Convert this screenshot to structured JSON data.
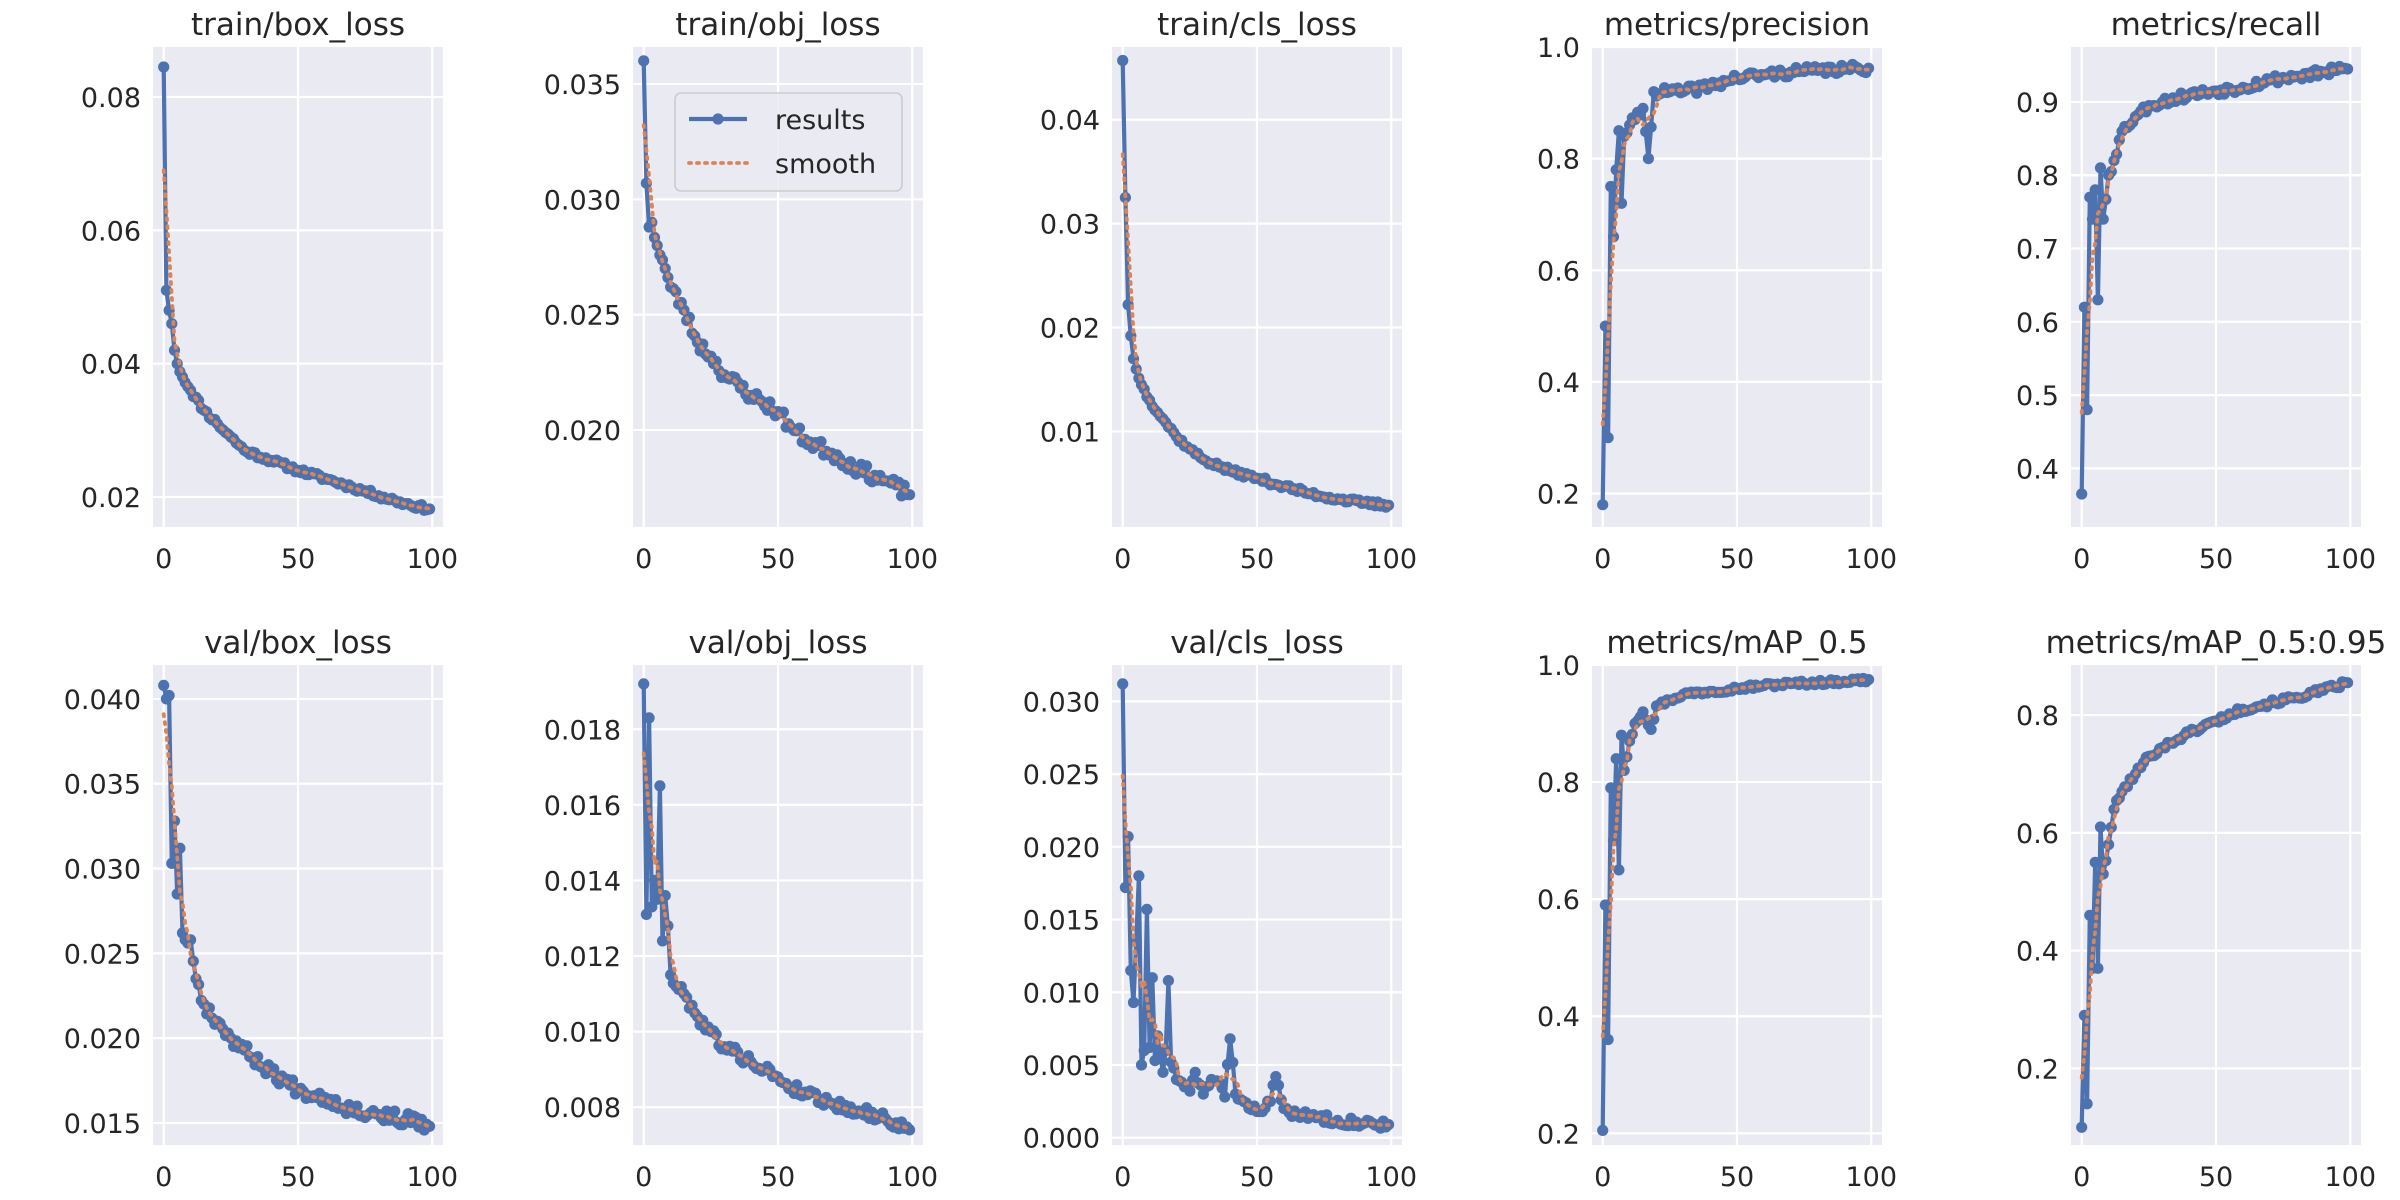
{
  "figure": {
    "colors": {
      "background": "#ffffff",
      "panel": "#EAEAF2",
      "grid": "#ffffff",
      "results": "#4C72B0",
      "smooth": "#DD8452",
      "text": "#262626"
    },
    "legend": {
      "location": "top-right",
      "panel": "train/obj_loss",
      "results_label": "results",
      "smooth_label": "smooth"
    }
  },
  "chart_data": [
    {
      "type": "line",
      "title": "train/box_loss",
      "xlim": [
        -4,
        104
      ],
      "ylim": [
        0.0155,
        0.0875
      ],
      "xticks": [
        0,
        50,
        100
      ],
      "xtick_labels": [
        "0",
        "50",
        "100"
      ],
      "yticks": [
        0.02,
        0.04,
        0.06,
        0.08
      ],
      "ytick_labels": [
        "0.02",
        "0.04",
        "0.06",
        "0.08"
      ],
      "anchors": [
        [
          0,
          0.0845
        ],
        [
          1,
          0.051
        ],
        [
          2,
          0.048
        ],
        [
          3,
          0.046
        ],
        [
          4,
          0.042
        ],
        [
          5,
          0.04
        ],
        [
          7,
          0.038
        ],
        [
          10,
          0.036
        ],
        [
          15,
          0.033
        ],
        [
          20,
          0.031
        ],
        [
          25,
          0.029
        ],
        [
          30,
          0.027
        ],
        [
          40,
          0.0255
        ],
        [
          50,
          0.024
        ],
        [
          60,
          0.0228
        ],
        [
          70,
          0.0215
        ],
        [
          80,
          0.0202
        ],
        [
          90,
          0.019
        ],
        [
          99,
          0.0182
        ]
      ],
      "noise": 0.0004,
      "seed": 11
    },
    {
      "type": "line",
      "title": "train/obj_loss",
      "xlim": [
        -4,
        104
      ],
      "ylim": [
        0.0158,
        0.0366
      ],
      "xticks": [
        0,
        50,
        100
      ],
      "xtick_labels": [
        "0",
        "50",
        "100"
      ],
      "yticks": [
        0.02,
        0.025,
        0.03,
        0.035
      ],
      "ytick_labels": [
        "0.020",
        "0.025",
        "0.030",
        "0.035"
      ],
      "anchors": [
        [
          0,
          0.036
        ],
        [
          1,
          0.0307
        ],
        [
          2,
          0.0288
        ],
        [
          3,
          0.029
        ],
        [
          5,
          0.028
        ],
        [
          8,
          0.027
        ],
        [
          10,
          0.0262
        ],
        [
          15,
          0.0252
        ],
        [
          20,
          0.0238
        ],
        [
          25,
          0.0232
        ],
        [
          30,
          0.0224
        ],
        [
          40,
          0.0215
        ],
        [
          50,
          0.0208
        ],
        [
          55,
          0.0201
        ],
        [
          60,
          0.0196
        ],
        [
          70,
          0.019
        ],
        [
          80,
          0.0183
        ],
        [
          90,
          0.0178
        ],
        [
          99,
          0.0172
        ]
      ],
      "noise": 0.0003,
      "seed": 23
    },
    {
      "type": "line",
      "title": "train/cls_loss",
      "xlim": [
        -4,
        104
      ],
      "ylim": [
        0.0008,
        0.047
      ],
      "xticks": [
        0,
        50,
        100
      ],
      "xtick_labels": [
        "0",
        "50",
        "100"
      ],
      "yticks": [
        0.01,
        0.02,
        0.03,
        0.04
      ],
      "ytick_labels": [
        "0.01",
        "0.02",
        "0.03",
        "0.04"
      ],
      "anchors": [
        [
          0,
          0.0457
        ],
        [
          1,
          0.0325
        ],
        [
          2,
          0.0222
        ],
        [
          3,
          0.0192
        ],
        [
          4,
          0.017
        ],
        [
          5,
          0.016
        ],
        [
          7,
          0.0145
        ],
        [
          10,
          0.013
        ],
        [
          15,
          0.0112
        ],
        [
          20,
          0.0095
        ],
        [
          25,
          0.0083
        ],
        [
          30,
          0.0073
        ],
        [
          40,
          0.0062
        ],
        [
          50,
          0.0055
        ],
        [
          60,
          0.0047
        ],
        [
          70,
          0.004
        ],
        [
          80,
          0.0035
        ],
        [
          90,
          0.0031
        ],
        [
          99,
          0.0029
        ]
      ],
      "noise": 0.00025,
      "seed": 37
    },
    {
      "type": "line",
      "title": "metrics/precision",
      "xlim": [
        -4,
        104
      ],
      "ylim": [
        0.14,
        1.0
      ],
      "xticks": [
        0,
        50,
        100
      ],
      "xtick_labels": [
        "0",
        "50",
        "100"
      ],
      "yticks": [
        0.2,
        0.4,
        0.6,
        0.8,
        1.0
      ],
      "ytick_labels": [
        "0.2",
        "0.4",
        "0.6",
        "0.8",
        "1.0"
      ],
      "anchors": [
        [
          0,
          0.18
        ],
        [
          1,
          0.5
        ],
        [
          2,
          0.3
        ],
        [
          3,
          0.75
        ],
        [
          4,
          0.66
        ],
        [
          5,
          0.78
        ],
        [
          6,
          0.85
        ],
        [
          7,
          0.72
        ],
        [
          8,
          0.84
        ],
        [
          10,
          0.86
        ],
        [
          12,
          0.87
        ],
        [
          15,
          0.89
        ],
        [
          17,
          0.8
        ],
        [
          19,
          0.92
        ],
        [
          25,
          0.92
        ],
        [
          30,
          0.92
        ],
        [
          40,
          0.93
        ],
        [
          50,
          0.945
        ],
        [
          60,
          0.95
        ],
        [
          70,
          0.955
        ],
        [
          80,
          0.958
        ],
        [
          90,
          0.96
        ],
        [
          99,
          0.962
        ]
      ],
      "noise": 0.008,
      "seed": 41
    },
    {
      "type": "line",
      "title": "metrics/recall",
      "xlim": [
        -4,
        104
      ],
      "ylim": [
        0.32,
        0.975
      ],
      "xticks": [
        0,
        50,
        100
      ],
      "xtick_labels": [
        "0",
        "50",
        "100"
      ],
      "yticks": [
        0.4,
        0.5,
        0.6,
        0.7,
        0.8,
        0.9
      ],
      "ytick_labels": [
        "0.4",
        "0.5",
        "0.6",
        "0.7",
        "0.8",
        "0.9"
      ],
      "anchors": [
        [
          0,
          0.365
        ],
        [
          1,
          0.62
        ],
        [
          2,
          0.48
        ],
        [
          3,
          0.77
        ],
        [
          4,
          0.74
        ],
        [
          5,
          0.78
        ],
        [
          6,
          0.63
        ],
        [
          7,
          0.81
        ],
        [
          8,
          0.74
        ],
        [
          10,
          0.8
        ],
        [
          12,
          0.82
        ],
        [
          15,
          0.86
        ],
        [
          20,
          0.88
        ],
        [
          25,
          0.895
        ],
        [
          30,
          0.9
        ],
        [
          40,
          0.91
        ],
        [
          50,
          0.915
        ],
        [
          60,
          0.92
        ],
        [
          70,
          0.93
        ],
        [
          80,
          0.935
        ],
        [
          90,
          0.94
        ],
        [
          99,
          0.945
        ]
      ],
      "noise": 0.006,
      "seed": 53
    },
    {
      "type": "line",
      "title": "val/box_loss",
      "xlim": [
        -4,
        104
      ],
      "ylim": [
        0.0137,
        0.042
      ],
      "xticks": [
        0,
        50,
        100
      ],
      "xtick_labels": [
        "0",
        "50",
        "100"
      ],
      "yticks": [
        0.015,
        0.02,
        0.025,
        0.03,
        0.035,
        0.04
      ],
      "ytick_labels": [
        "0.015",
        "0.020",
        "0.025",
        "0.030",
        "0.035",
        "0.040"
      ],
      "anchors": [
        [
          0,
          0.0408
        ],
        [
          1,
          0.04
        ],
        [
          2,
          0.0402
        ],
        [
          3,
          0.0303
        ],
        [
          4,
          0.0328
        ],
        [
          5,
          0.0285
        ],
        [
          6,
          0.0312
        ],
        [
          7,
          0.0262
        ],
        [
          8,
          0.0258
        ],
        [
          10,
          0.0258
        ],
        [
          12,
          0.0235
        ],
        [
          15,
          0.022
        ],
        [
          20,
          0.021
        ],
        [
          25,
          0.02
        ],
        [
          30,
          0.0193
        ],
        [
          40,
          0.018
        ],
        [
          50,
          0.017
        ],
        [
          60,
          0.0165
        ],
        [
          70,
          0.0158
        ],
        [
          80,
          0.0155
        ],
        [
          90,
          0.0152
        ],
        [
          99,
          0.0148
        ]
      ],
      "noise": 0.0004,
      "seed": 67
    },
    {
      "type": "line",
      "title": "val/obj_loss",
      "xlim": [
        -4,
        104
      ],
      "ylim": [
        0.007,
        0.0197
      ],
      "xticks": [
        0,
        50,
        100
      ],
      "xtick_labels": [
        "0",
        "50",
        "100"
      ],
      "yticks": [
        0.008,
        0.01,
        0.012,
        0.014,
        0.016,
        0.018
      ],
      "ytick_labels": [
        "0.008",
        "0.010",
        "0.012",
        "0.014",
        "0.016",
        "0.018"
      ],
      "anchors": [
        [
          0,
          0.0192
        ],
        [
          1,
          0.0131
        ],
        [
          2,
          0.0183
        ],
        [
          3,
          0.0133
        ],
        [
          4,
          0.014
        ],
        [
          5,
          0.0135
        ],
        [
          6,
          0.0165
        ],
        [
          7,
          0.0124
        ],
        [
          8,
          0.0136
        ],
        [
          9,
          0.0128
        ],
        [
          10,
          0.0115
        ],
        [
          12,
          0.0112
        ],
        [
          15,
          0.011
        ],
        [
          20,
          0.0104
        ],
        [
          25,
          0.01
        ],
        [
          30,
          0.0096
        ],
        [
          40,
          0.0092
        ],
        [
          50,
          0.0088
        ],
        [
          55,
          0.0085
        ],
        [
          60,
          0.0084
        ],
        [
          70,
          0.0081
        ],
        [
          80,
          0.0079
        ],
        [
          90,
          0.0077
        ],
        [
          99,
          0.0074
        ]
      ],
      "noise": 0.00015,
      "seed": 79
    },
    {
      "type": "line",
      "title": "val/cls_loss",
      "xlim": [
        -4,
        104
      ],
      "ylim": [
        -0.0005,
        0.0325
      ],
      "xticks": [
        0,
        50,
        100
      ],
      "xtick_labels": [
        "0",
        "50",
        "100"
      ],
      "yticks": [
        0.0,
        0.005,
        0.01,
        0.015,
        0.02,
        0.025,
        0.03
      ],
      "ytick_labels": [
        "0.000",
        "0.005",
        "0.010",
        "0.015",
        "0.020",
        "0.025",
        "0.030"
      ],
      "anchors": [
        [
          0,
          0.0312
        ],
        [
          1,
          0.0172
        ],
        [
          2,
          0.0207
        ],
        [
          3,
          0.0115
        ],
        [
          4,
          0.0093
        ],
        [
          5,
          0.0135
        ],
        [
          6,
          0.018
        ],
        [
          7,
          0.005
        ],
        [
          8,
          0.006
        ],
        [
          9,
          0.0157
        ],
        [
          10,
          0.0062
        ],
        [
          11,
          0.011
        ],
        [
          12,
          0.0053
        ],
        [
          13,
          0.007
        ],
        [
          15,
          0.0045
        ],
        [
          16,
          0.006
        ],
        [
          17,
          0.0108
        ],
        [
          18,
          0.0052
        ],
        [
          20,
          0.004
        ],
        [
          23,
          0.0035
        ],
        [
          25,
          0.0032
        ],
        [
          27,
          0.0045
        ],
        [
          30,
          0.003
        ],
        [
          33,
          0.004
        ],
        [
          36,
          0.0038
        ],
        [
          38,
          0.0028
        ],
        [
          40,
          0.0068
        ],
        [
          42,
          0.003
        ],
        [
          45,
          0.0025
        ],
        [
          50,
          0.0018
        ],
        [
          55,
          0.0025
        ],
        [
          57,
          0.0042
        ],
        [
          60,
          0.002
        ],
        [
          65,
          0.0015
        ],
        [
          70,
          0.0015
        ],
        [
          80,
          0.0012
        ],
        [
          90,
          0.001
        ],
        [
          99,
          0.0009
        ]
      ],
      "noise": 0.0003,
      "seed": 83
    },
    {
      "type": "line",
      "title": "metrics/mAP_0.5",
      "xlim": [
        -4,
        104
      ],
      "ylim": [
        0.18,
        1.0
      ],
      "xticks": [
        0,
        50,
        100
      ],
      "xtick_labels": [
        "0",
        "50",
        "100"
      ],
      "yticks": [
        0.2,
        0.4,
        0.6,
        0.8,
        1.0
      ],
      "ytick_labels": [
        "0.2",
        "0.4",
        "0.6",
        "0.8",
        "1.0"
      ],
      "anchors": [
        [
          0,
          0.205
        ],
        [
          1,
          0.59
        ],
        [
          2,
          0.36
        ],
        [
          3,
          0.79
        ],
        [
          4,
          0.7
        ],
        [
          5,
          0.84
        ],
        [
          6,
          0.65
        ],
        [
          7,
          0.88
        ],
        [
          8,
          0.82
        ],
        [
          10,
          0.87
        ],
        [
          12,
          0.9
        ],
        [
          15,
          0.92
        ],
        [
          18,
          0.89
        ],
        [
          20,
          0.93
        ],
        [
          25,
          0.94
        ],
        [
          30,
          0.95
        ],
        [
          40,
          0.955
        ],
        [
          50,
          0.96
        ],
        [
          60,
          0.965
        ],
        [
          70,
          0.968
        ],
        [
          80,
          0.97
        ],
        [
          90,
          0.972
        ],
        [
          99,
          0.975
        ]
      ],
      "noise": 0.004,
      "seed": 97
    },
    {
      "type": "line",
      "title": "metrics/mAP_0.5:0.95",
      "xlim": [
        -4,
        104
      ],
      "ylim": [
        0.07,
        0.885
      ],
      "xticks": [
        0,
        50,
        100
      ],
      "xtick_labels": [
        "0",
        "50",
        "100"
      ],
      "yticks": [
        0.2,
        0.4,
        0.6,
        0.8
      ],
      "ytick_labels": [
        "0.2",
        "0.4",
        "0.6",
        "0.8"
      ],
      "anchors": [
        [
          0,
          0.1
        ],
        [
          1,
          0.29
        ],
        [
          2,
          0.14
        ],
        [
          3,
          0.46
        ],
        [
          4,
          0.37
        ],
        [
          5,
          0.55
        ],
        [
          6,
          0.37
        ],
        [
          7,
          0.61
        ],
        [
          8,
          0.53
        ],
        [
          10,
          0.58
        ],
        [
          12,
          0.64
        ],
        [
          15,
          0.67
        ],
        [
          20,
          0.7
        ],
        [
          25,
          0.73
        ],
        [
          30,
          0.745
        ],
        [
          40,
          0.77
        ],
        [
          50,
          0.79
        ],
        [
          60,
          0.81
        ],
        [
          70,
          0.82
        ],
        [
          80,
          0.83
        ],
        [
          90,
          0.842
        ],
        [
          99,
          0.855
        ]
      ],
      "noise": 0.005,
      "seed": 101
    }
  ]
}
